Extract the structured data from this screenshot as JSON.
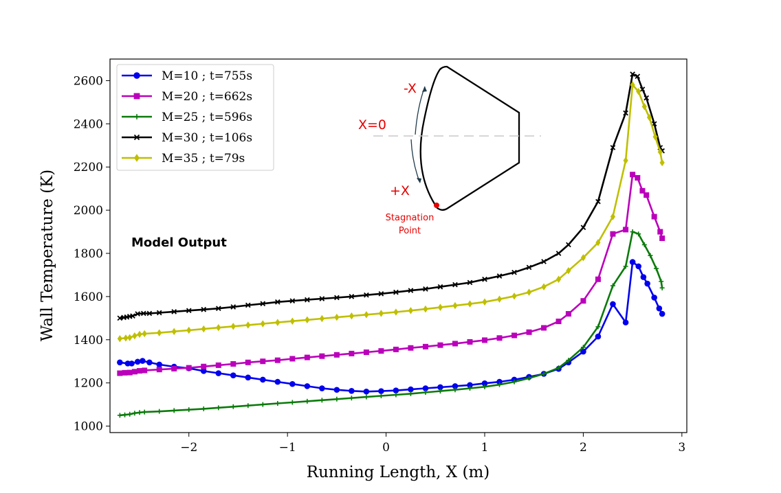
{
  "chart_data": {
    "type": "line",
    "xlabel": "Running Length, X (m)",
    "ylabel": "Wall Temperature (K)",
    "xlim": [
      -2.8,
      3.05
    ],
    "ylim": [
      970,
      2700
    ],
    "xticks": [
      -2,
      -1,
      0,
      1,
      2,
      3
    ],
    "xtick_labels": [
      "−2",
      "−1",
      "0",
      "1",
      "2",
      "3"
    ],
    "yticks": [
      1000,
      1200,
      1400,
      1600,
      1800,
      2000,
      2200,
      2400,
      2600
    ],
    "ytick_labels": [
      "1000",
      "1200",
      "1400",
      "1600",
      "1800",
      "2000",
      "2200",
      "2400",
      "2600"
    ],
    "grid": false,
    "legend_position": "top-left",
    "annotation": "Model Output",
    "series": [
      {
        "name": "M=10 ; t=755s",
        "color": "#0000ee",
        "marker": "circle",
        "x": [
          -2.7,
          -2.62,
          -2.58,
          -2.52,
          -2.47,
          -2.4,
          -2.3,
          -2.15,
          -2.0,
          -1.85,
          -1.7,
          -1.55,
          -1.4,
          -1.25,
          -1.1,
          -0.95,
          -0.8,
          -0.65,
          -0.5,
          -0.35,
          -0.2,
          -0.05,
          0.1,
          0.25,
          0.4,
          0.55,
          0.7,
          0.85,
          1.0,
          1.15,
          1.3,
          1.45,
          1.6,
          1.75,
          1.85,
          2.0,
          2.15,
          2.3,
          2.43,
          2.5,
          2.56,
          2.61,
          2.65,
          2.72,
          2.77,
          2.8
        ],
        "y": [
          1295,
          1290,
          1290,
          1298,
          1302,
          1295,
          1285,
          1275,
          1268,
          1255,
          1245,
          1235,
          1225,
          1215,
          1205,
          1195,
          1185,
          1175,
          1168,
          1163,
          1160,
          1162,
          1165,
          1170,
          1175,
          1180,
          1185,
          1190,
          1198,
          1205,
          1215,
          1228,
          1242,
          1265,
          1295,
          1345,
          1415,
          1565,
          1480,
          1760,
          1740,
          1690,
          1660,
          1595,
          1545,
          1520
        ]
      },
      {
        "name": "M=20 ; t=662s",
        "color": "#bb00bb",
        "marker": "square",
        "x": [
          -2.7,
          -2.65,
          -2.6,
          -2.55,
          -2.5,
          -2.45,
          -2.3,
          -2.15,
          -2.0,
          -1.85,
          -1.7,
          -1.55,
          -1.4,
          -1.25,
          -1.1,
          -0.95,
          -0.8,
          -0.65,
          -0.5,
          -0.35,
          -0.2,
          -0.05,
          0.1,
          0.25,
          0.4,
          0.55,
          0.7,
          0.85,
          1.0,
          1.15,
          1.3,
          1.45,
          1.6,
          1.75,
          1.85,
          2.0,
          2.15,
          2.3,
          2.43,
          2.5,
          2.55,
          2.6,
          2.64,
          2.72,
          2.78,
          2.8
        ],
        "y": [
          1245,
          1247,
          1248,
          1252,
          1256,
          1258,
          1262,
          1266,
          1270,
          1276,
          1282,
          1288,
          1295,
          1300,
          1305,
          1312,
          1318,
          1324,
          1330,
          1336,
          1342,
          1348,
          1355,
          1362,
          1368,
          1375,
          1382,
          1390,
          1398,
          1408,
          1420,
          1435,
          1455,
          1485,
          1520,
          1580,
          1680,
          1890,
          1910,
          2165,
          2150,
          2090,
          2070,
          1970,
          1900,
          1870
        ]
      },
      {
        "name": "M=25 ; t=596s",
        "color": "#0a7a0a",
        "marker": "plus",
        "x": [
          -2.7,
          -2.65,
          -2.6,
          -2.55,
          -2.5,
          -2.45,
          -2.3,
          -2.15,
          -2.0,
          -1.85,
          -1.7,
          -1.55,
          -1.4,
          -1.25,
          -1.1,
          -0.95,
          -0.8,
          -0.65,
          -0.5,
          -0.35,
          -0.2,
          -0.05,
          0.1,
          0.25,
          0.4,
          0.55,
          0.7,
          0.85,
          1.0,
          1.15,
          1.3,
          1.45,
          1.6,
          1.75,
          1.85,
          2.0,
          2.15,
          2.3,
          2.43,
          2.5,
          2.56,
          2.62,
          2.68,
          2.74,
          2.79,
          2.8
        ],
        "y": [
          1050,
          1052,
          1055,
          1060,
          1063,
          1065,
          1068,
          1072,
          1076,
          1080,
          1085,
          1090,
          1095,
          1100,
          1105,
          1110,
          1115,
          1120,
          1125,
          1130,
          1135,
          1140,
          1145,
          1150,
          1156,
          1162,
          1168,
          1175,
          1182,
          1192,
          1205,
          1222,
          1242,
          1270,
          1305,
          1365,
          1460,
          1650,
          1740,
          1900,
          1890,
          1840,
          1790,
          1730,
          1670,
          1640
        ]
      },
      {
        "name": "M=30 ; t=106s",
        "color": "#000000",
        "marker": "x",
        "x": [
          -2.7,
          -2.66,
          -2.63,
          -2.6,
          -2.57,
          -2.52,
          -2.46,
          -2.4,
          -2.3,
          -2.15,
          -2.0,
          -1.85,
          -1.7,
          -1.55,
          -1.4,
          -1.25,
          -1.1,
          -0.95,
          -0.8,
          -0.65,
          -0.5,
          -0.35,
          -0.2,
          -0.05,
          0.1,
          0.25,
          0.4,
          0.55,
          0.7,
          0.85,
          1.0,
          1.15,
          1.3,
          1.45,
          1.6,
          1.75,
          1.85,
          2.0,
          2.15,
          2.3,
          2.43,
          2.5,
          2.55,
          2.6,
          2.64,
          2.72,
          2.78,
          2.8
        ],
        "y": [
          1500,
          1503,
          1505,
          1508,
          1510,
          1520,
          1522,
          1522,
          1525,
          1530,
          1535,
          1540,
          1545,
          1552,
          1560,
          1567,
          1575,
          1580,
          1585,
          1590,
          1595,
          1600,
          1607,
          1613,
          1620,
          1628,
          1635,
          1645,
          1655,
          1665,
          1680,
          1695,
          1712,
          1735,
          1762,
          1800,
          1840,
          1920,
          2040,
          2290,
          2450,
          2630,
          2620,
          2560,
          2520,
          2400,
          2290,
          2275
        ]
      },
      {
        "name": "M=35 ; t=79s",
        "color": "#bfbf00",
        "marker": "diamond",
        "x": [
          -2.7,
          -2.64,
          -2.6,
          -2.55,
          -2.5,
          -2.45,
          -2.3,
          -2.15,
          -2.0,
          -1.85,
          -1.7,
          -1.55,
          -1.4,
          -1.25,
          -1.1,
          -0.95,
          -0.8,
          -0.65,
          -0.5,
          -0.35,
          -0.2,
          -0.05,
          0.1,
          0.25,
          0.4,
          0.55,
          0.7,
          0.85,
          1.0,
          1.15,
          1.3,
          1.45,
          1.6,
          1.75,
          1.85,
          2.0,
          2.15,
          2.3,
          2.43,
          2.5,
          2.56,
          2.62,
          2.67,
          2.73,
          2.78,
          2.8
        ],
        "y": [
          1405,
          1408,
          1410,
          1418,
          1425,
          1428,
          1432,
          1438,
          1444,
          1450,
          1456,
          1462,
          1468,
          1474,
          1480,
          1486,
          1492,
          1498,
          1504,
          1510,
          1516,
          1522,
          1528,
          1535,
          1542,
          1550,
          1558,
          1566,
          1575,
          1588,
          1602,
          1620,
          1645,
          1680,
          1720,
          1780,
          1850,
          1970,
          2230,
          2580,
          2550,
          2480,
          2430,
          2340,
          2270,
          2220
        ]
      }
    ]
  },
  "inset": {
    "minus_x": "-X",
    "x_zero": "X=0",
    "plus_x": "+X",
    "stagnation_line1": "Stagnation",
    "stagnation_line2": "Point",
    "red": "#e60000"
  }
}
